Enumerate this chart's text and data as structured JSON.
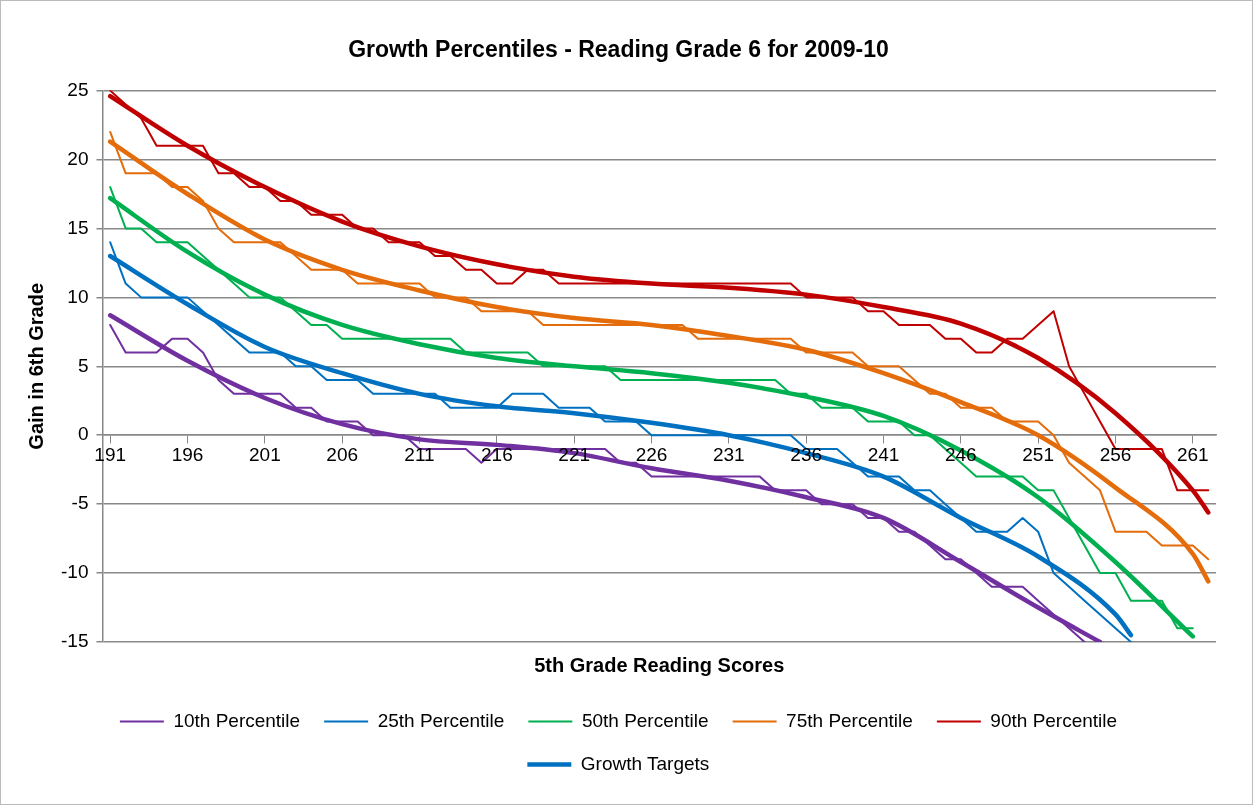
{
  "chart_data": {
    "type": "line",
    "title": "Growth Percentiles - Reading Grade 6 for 2009-10",
    "xlabel": "5th Grade Reading Scores",
    "ylabel": "Gain in 6th Grade",
    "x": [
      191,
      192,
      193,
      194,
      195,
      196,
      197,
      198,
      199,
      200,
      201,
      202,
      203,
      204,
      205,
      206,
      207,
      208,
      209,
      210,
      211,
      212,
      213,
      214,
      215,
      216,
      217,
      218,
      219,
      220,
      221,
      222,
      223,
      224,
      225,
      226,
      227,
      228,
      229,
      230,
      231,
      232,
      233,
      234,
      235,
      236,
      237,
      238,
      239,
      240,
      241,
      242,
      243,
      244,
      245,
      246,
      247,
      248,
      249,
      250,
      251,
      252,
      253,
      254,
      255,
      256,
      257,
      258,
      259,
      260,
      261,
      262
    ],
    "xlim": [
      190.5,
      262.5
    ],
    "xticks": [
      191,
      196,
      201,
      206,
      211,
      216,
      221,
      226,
      231,
      236,
      241,
      246,
      251,
      256,
      261
    ],
    "ylim": [
      -15,
      25
    ],
    "yticks": [
      -15,
      -10,
      -5,
      0,
      5,
      10,
      15,
      20,
      25
    ],
    "grid": "y",
    "legend": "bottom",
    "marker": "none",
    "line_style": "solid",
    "series": [
      {
        "name": "10th Percentile",
        "color": "#7030a0",
        "values": [
          8,
          6,
          6,
          6,
          7,
          7,
          6,
          4,
          3,
          3,
          3,
          3,
          2,
          2,
          1,
          1,
          1,
          0,
          0,
          0,
          -1,
          -1,
          -1,
          -1,
          -2,
          -1,
          -1,
          -1,
          -1,
          -1,
          -1,
          -1,
          -1,
          -2,
          -2,
          -3,
          -3,
          -3,
          -3,
          -3,
          -3,
          -3,
          -3,
          -4,
          -4,
          -4,
          -5,
          -5,
          -5,
          -6,
          -6,
          -7,
          -7,
          -8,
          -9,
          -9,
          -10,
          -11,
          -11,
          -11,
          -12,
          -13,
          -14,
          -15,
          null,
          null,
          null,
          null,
          null,
          null,
          null,
          null
        ]
      },
      {
        "name": "25th Percentile",
        "color": "#0070c0",
        "values": [
          14,
          11,
          10,
          10,
          10,
          10,
          9,
          8,
          7,
          6,
          6,
          6,
          5,
          5,
          4,
          4,
          4,
          3,
          3,
          3,
          3,
          3,
          2,
          2,
          2,
          2,
          3,
          3,
          3,
          2,
          2,
          2,
          1,
          1,
          1,
          0,
          0,
          0,
          0,
          0,
          0,
          0,
          0,
          0,
          0,
          -1,
          -1,
          -1,
          -2,
          -3,
          -3,
          -3,
          -4,
          -4,
          -5,
          -6,
          -7,
          -7,
          -7,
          -6,
          -7,
          -10,
          -11,
          -12,
          -13,
          -14,
          -15,
          null,
          null,
          null,
          null,
          null
        ]
      },
      {
        "name": "50th Percentile",
        "color": "#00b050",
        "values": [
          18,
          15,
          15,
          14,
          14,
          14,
          13,
          12,
          11,
          10,
          10,
          10,
          9,
          8,
          8,
          7,
          7,
          7,
          7,
          7,
          7,
          7,
          7,
          6,
          6,
          6,
          6,
          6,
          5,
          5,
          5,
          5,
          5,
          4,
          4,
          4,
          4,
          4,
          4,
          4,
          4,
          4,
          4,
          4,
          3,
          3,
          2,
          2,
          2,
          1,
          1,
          1,
          0,
          0,
          -1,
          -2,
          -3,
          -3,
          -3,
          -3,
          -4,
          -4,
          -6,
          -8,
          -10,
          -10,
          -12,
          -12,
          -12,
          -14,
          -14,
          null
        ]
      },
      {
        "name": "75th Percentile",
        "color": "#e46c0a",
        "values": [
          22,
          19,
          19,
          19,
          18,
          18,
          17,
          15,
          14,
          14,
          14,
          14,
          13,
          12,
          12,
          12,
          11,
          11,
          11,
          11,
          11,
          10,
          10,
          10,
          9,
          9,
          9,
          9,
          8,
          8,
          8,
          8,
          8,
          8,
          8,
          8,
          8,
          8,
          7,
          7,
          7,
          7,
          7,
          7,
          7,
          6,
          6,
          6,
          6,
          5,
          5,
          5,
          4,
          3,
          3,
          2,
          2,
          2,
          1,
          1,
          1,
          0,
          -2,
          -3,
          -4,
          -7,
          -7,
          -7,
          -8,
          -8,
          -8,
          -9
        ]
      },
      {
        "name": "90th Percentile",
        "color": "#c00000",
        "values": [
          25,
          24,
          23,
          21,
          21,
          21,
          21,
          19,
          19,
          18,
          18,
          17,
          17,
          16,
          16,
          16,
          15,
          15,
          14,
          14,
          14,
          13,
          13,
          12,
          12,
          11,
          11,
          12,
          12,
          11,
          11,
          11,
          11,
          11,
          11,
          11,
          11,
          11,
          11,
          11,
          11,
          11,
          11,
          11,
          11,
          10,
          10,
          10,
          10,
          9,
          9,
          8,
          8,
          8,
          7,
          7,
          6,
          6,
          7,
          7,
          8,
          9,
          5,
          3,
          1,
          -1,
          -1,
          -1,
          -1,
          -4,
          -4,
          -4
        ]
      },
      {
        "type": "line",
        "color": "#7030a0",
        "x": [
          191,
          196,
          201,
          206,
          211,
          216,
          221,
          226,
          231,
          236,
          241,
          246,
          251,
          255
        ],
        "values": [
          8.7,
          5.4,
          2.7,
          0.8,
          -0.3,
          -0.7,
          -1.3,
          -2.4,
          -3.3,
          -4.5,
          -6,
          -9.2,
          -12.5,
          -15
        ]
      },
      {
        "type": "line",
        "name": "Growth Targets",
        "color": "#0070c0",
        "x": [
          191,
          196,
          201,
          206,
          211,
          216,
          221,
          226,
          231,
          236,
          241,
          246,
          251,
          256,
          257
        ],
        "values": [
          13,
          9.5,
          6.4,
          4.5,
          3,
          2.1,
          1.6,
          0.9,
          0,
          -1.3,
          -3,
          -6,
          -8.8,
          -13,
          -14.5
        ]
      },
      {
        "type": "line",
        "color": "#00b050",
        "x": [
          191,
          196,
          201,
          206,
          211,
          216,
          221,
          226,
          231,
          236,
          241,
          246,
          251,
          256,
          261
        ],
        "values": [
          17.2,
          13.3,
          10.2,
          8,
          6.6,
          5.6,
          5,
          4.5,
          3.8,
          2.8,
          1.4,
          -1.1,
          -4.5,
          -9.2,
          -14.6
        ]
      },
      {
        "type": "line",
        "color": "#e46c0a",
        "x": [
          191,
          196,
          201,
          206,
          211,
          216,
          221,
          226,
          231,
          236,
          241,
          246,
          251,
          256,
          261,
          262
        ],
        "values": [
          21.3,
          17.5,
          14.2,
          12,
          10.5,
          9.3,
          8.5,
          8,
          7.2,
          6.2,
          4.5,
          2.4,
          0,
          -3.8,
          -8.6,
          -10.6
        ]
      },
      {
        "type": "line",
        "color": "#c00000",
        "x": [
          191,
          196,
          201,
          206,
          211,
          216,
          221,
          226,
          231,
          236,
          241,
          246,
          251,
          256,
          261,
          262
        ],
        "values": [
          24.6,
          21,
          18,
          15.5,
          13.7,
          12.4,
          11.5,
          11,
          10.7,
          10.2,
          9.3,
          8.1,
          5.6,
          1.6,
          -4,
          -5.6
        ]
      }
    ]
  }
}
